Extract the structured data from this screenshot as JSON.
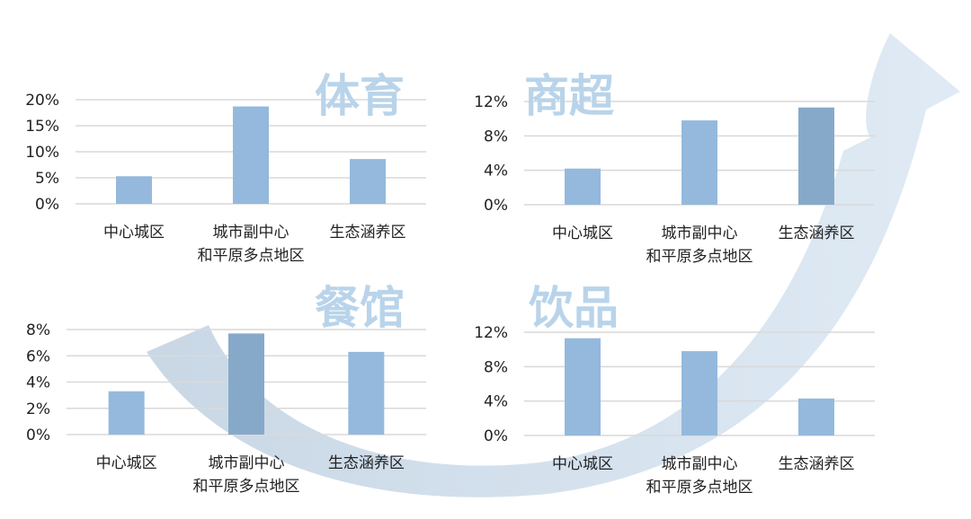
{
  "colors": {
    "bar": "#94b9dd",
    "bar_dark": "#87a9c9",
    "grid": "#d9d9d9",
    "title": "#b9d4ea",
    "arrow_dark": "#c3d3e3",
    "arrow_light": "#dce8f3"
  },
  "chart_data": [
    {
      "type": "bar",
      "title": "体育",
      "categories": [
        "中心城区",
        "城市副中心\n和平原多点地区",
        "生态涵养区"
      ],
      "values": [
        5.3,
        18.7,
        8.6
      ],
      "ylim": [
        0,
        20
      ],
      "yticks": [
        "0%",
        "5%",
        "10%",
        "15%",
        "20%"
      ],
      "grid": true
    },
    {
      "type": "bar",
      "title": "商超",
      "categories": [
        "中心城区",
        "城市副中心\n和平原多点地区",
        "生态涵养区"
      ],
      "values": [
        4.2,
        9.8,
        11.3
      ],
      "ylim": [
        0,
        12
      ],
      "yticks": [
        "0%",
        "4%",
        "8%",
        "12%"
      ],
      "grid": true
    },
    {
      "type": "bar",
      "title": "餐馆",
      "categories": [
        "中心城区",
        "城市副中心\n和平原多点地区",
        "生态涵养区"
      ],
      "values": [
        3.3,
        7.7,
        6.3
      ],
      "ylim": [
        0,
        8
      ],
      "yticks": [
        "0%",
        "2%",
        "4%",
        "6%",
        "8%"
      ],
      "grid": true
    },
    {
      "type": "bar",
      "title": "饮品",
      "categories": [
        "中心城区",
        "城市副中心\n和平原多点地区",
        "生态涵养区"
      ],
      "values": [
        11.3,
        9.8,
        4.3
      ],
      "ylim": [
        0,
        12
      ],
      "yticks": [
        "0%",
        "4%",
        "8%",
        "12%"
      ],
      "grid": true
    }
  ]
}
